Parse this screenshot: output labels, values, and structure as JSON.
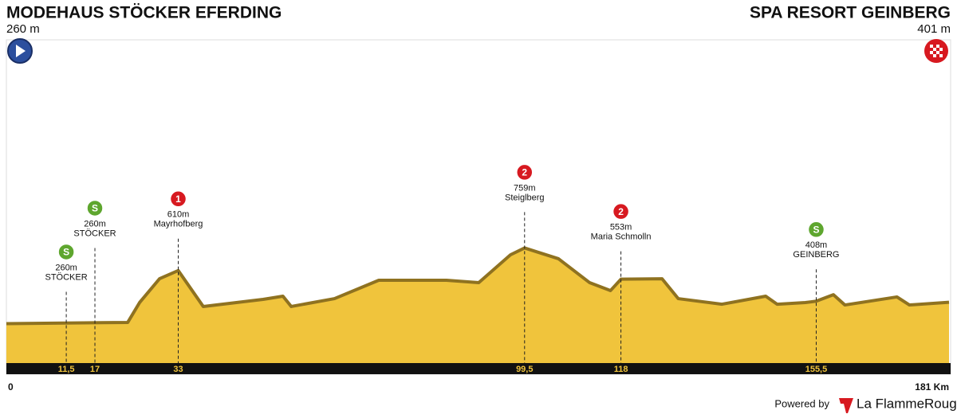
{
  "chart_data": {
    "type": "area",
    "start": {
      "name": "MODEHAUS STÖCKER EFERDING",
      "elevation": {
        "value": 260,
        "label": "260 m"
      }
    },
    "finish": {
      "name": "SPA RESORT GEINBERG",
      "elevation": {
        "value": 401,
        "label": "401 m"
      }
    },
    "x": [
      0,
      23.3,
      25.6,
      29.4,
      33,
      37.8,
      49.3,
      53.1,
      54.7,
      63,
      71.5,
      84.5,
      90.7,
      96.8,
      99.5,
      106,
      112,
      116,
      118,
      125.9,
      129,
      137.4,
      145.8,
      148,
      153.4,
      155.5,
      158.8,
      161,
      171,
      173.4,
      181
    ],
    "values": [
      260,
      268,
      400,
      556,
      610,
      373,
      420,
      441,
      373,
      425,
      546,
      546,
      530,
      714,
      759,
      688,
      530,
      478,
      553,
      556,
      425,
      388,
      441,
      388,
      399,
      408,
      451,
      383,
      436,
      383,
      401
    ],
    "color": "#f0c43c",
    "edge_color": "#8f7220",
    "xlim": [
      0,
      181
    ],
    "ylim": [
      0,
      2100
    ],
    "xticks": [
      0,
      {
        "value": 181,
        "label": "181 Km"
      }
    ],
    "climbs": [
      {
        "km": {
          "value": 11.5,
          "label": "11,5"
        },
        "elevation": {
          "value": 260,
          "label": "260m"
        },
        "name": "STÖCKER",
        "category": "S",
        "color": "#5ea62e"
      },
      {
        "km": 17,
        "elevation": {
          "value": 260,
          "label": "260m"
        },
        "name": "STÖCKER",
        "category": "S",
        "color": "#5ea62e"
      },
      {
        "km": 33,
        "elevation": {
          "value": 610,
          "label": "610m"
        },
        "name": "Mayrhofberg",
        "category": "1",
        "color": "#d71920"
      },
      {
        "km": {
          "value": 99.5,
          "label": "99,5"
        },
        "elevation": {
          "value": 759,
          "label": "759m"
        },
        "name": "Steiglberg",
        "category": "2",
        "color": "#d71920"
      },
      {
        "km": 118,
        "elevation": {
          "value": 553,
          "label": "553m"
        },
        "name": "Maria Schmolln",
        "category": "2",
        "color": "#d71920"
      },
      {
        "km": {
          "value": 155.5,
          "label": "155,5"
        },
        "elevation": {
          "value": 408,
          "label": "408m"
        },
        "name": "GEINBERG",
        "category": "S",
        "color": "#5ea62e"
      }
    ]
  },
  "footer": {
    "powered": "Powered by",
    "brand": "La FlammeRouge"
  }
}
